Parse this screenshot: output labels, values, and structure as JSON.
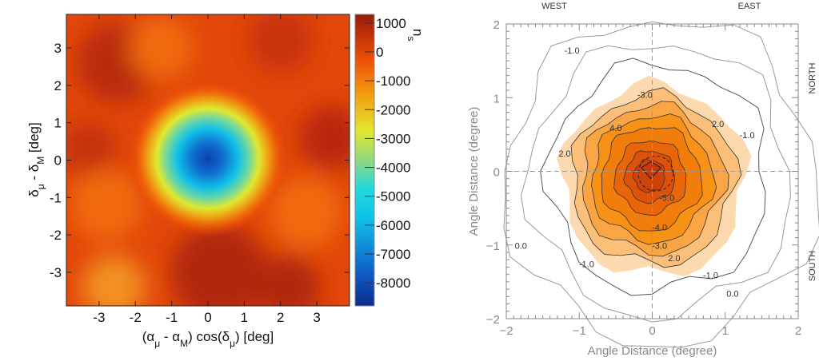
{
  "chart_data": [
    {
      "type": "heatmap",
      "xlabel": "(α_μ - α_M) cos(δ_μ) [deg]",
      "ylabel": "δ_μ - δ_M [deg]",
      "xlabel_parts": [
        "(α",
        "μ",
        " - α",
        "M",
        ") cos(δ",
        "μ",
        ") [deg]"
      ],
      "ylabel_parts": [
        "δ",
        "μ",
        " - δ",
        "M",
        " [deg]"
      ],
      "xlim": [
        -3.9,
        3.9
      ],
      "ylim": [
        -3.9,
        3.9
      ],
      "xticks": [
        "-3",
        "-2",
        "-1",
        "0",
        "1",
        "2",
        "3"
      ],
      "yticks": [
        "3",
        "2",
        "1",
        "0",
        "-1",
        "-2",
        "-3"
      ],
      "colorbar": {
        "label": "n",
        "label_sub": "s",
        "range": [
          -8800,
          1300
        ],
        "ticks": [
          "1000",
          "0",
          "-1000",
          "-2000",
          "-3000",
          "-4000",
          "-5000",
          "-6000",
          "-7000",
          "-8000"
        ]
      },
      "minimum": {
        "x": 0,
        "y": 0,
        "value": -8500
      },
      "background_value": 500
    },
    {
      "type": "contour",
      "xlabel": "Angle Distance (degree)",
      "ylabel": "Angle Distance (degree)",
      "xlim": [
        -2,
        2
      ],
      "ylim": [
        -2,
        2
      ],
      "xticks": [
        "−2",
        "−1",
        "0",
        "1",
        "2"
      ],
      "yticks": [
        "2",
        "1",
        "0",
        "−1",
        "−2"
      ],
      "corner_labels": {
        "top_left": "WEST",
        "top_right": "EAST",
        "right_top": "NORTH",
        "right_bottom": "SOUTH"
      },
      "contour_labels": [
        "-3.0",
        "2.0",
        "-1.0",
        "4.0",
        "2.0",
        "-5.0",
        "-4.0",
        "-3.0",
        "2.0",
        "-1.0",
        "-1.0",
        "0.0",
        "0.0",
        "-1.0"
      ],
      "fill_colors": [
        "#fdd9b0",
        "#fbbf7a",
        "#f9a545",
        "#f89217",
        "#f07d0c",
        "#e8650a",
        "#dc520a",
        "#cf420a"
      ]
    }
  ]
}
